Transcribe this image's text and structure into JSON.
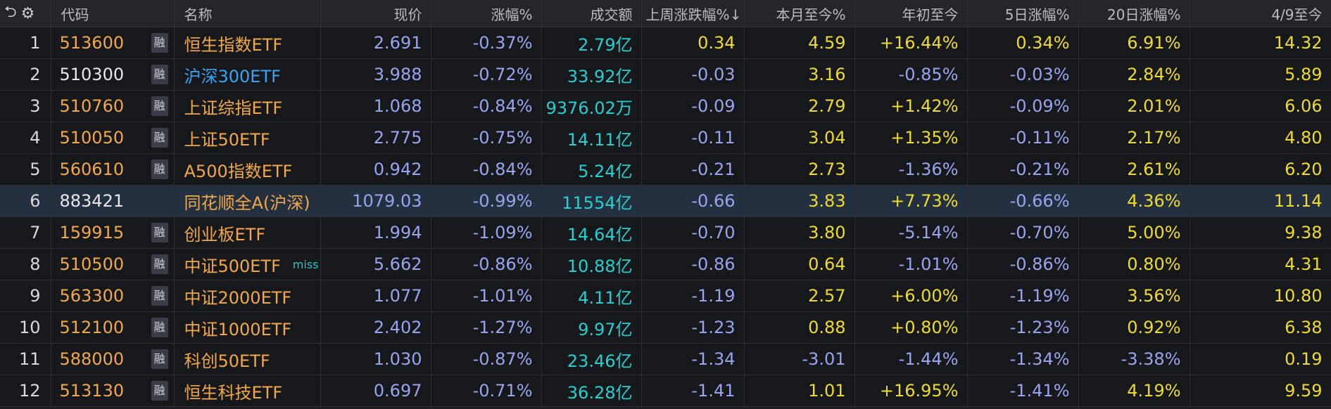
{
  "header": {
    "undo_icon": "undo-icon",
    "gear_icon": "gear-icon",
    "columns": [
      "代码",
      "名称",
      "现价",
      "涨幅%",
      "成交额",
      "上周涨跌幅%↓",
      "本月至今%",
      "年初至今",
      "5日涨幅%",
      "20日涨幅%",
      "4/9至今"
    ]
  },
  "rong_label": "融",
  "rows": [
    {
      "idx": "1",
      "code": "513600",
      "margin": true,
      "name": "恒生指数ETF",
      "price": "2.691",
      "chg": "-0.37%",
      "amount": "2.79亿",
      "lastweek": "0.34",
      "mtd": "4.59",
      "ytd": "+16.44%",
      "d5": "0.34%",
      "d20": "6.91%",
      "since": "14.32"
    },
    {
      "idx": "2",
      "code": "510300",
      "margin": true,
      "name": "沪深300ETF",
      "price": "3.988",
      "chg": "-0.72%",
      "amount": "33.92亿",
      "lastweek": "-0.03",
      "mtd": "3.16",
      "ytd": "-0.85%",
      "d5": "-0.03%",
      "d20": "2.84%",
      "since": "5.89"
    },
    {
      "idx": "3",
      "code": "510760",
      "margin": true,
      "name": "上证综指ETF",
      "price": "1.068",
      "chg": "-0.84%",
      "amount": "9376.02万",
      "lastweek": "-0.09",
      "mtd": "2.79",
      "ytd": "+1.42%",
      "d5": "-0.09%",
      "d20": "2.01%",
      "since": "6.06"
    },
    {
      "idx": "4",
      "code": "510050",
      "margin": true,
      "name": "上证50ETF",
      "price": "2.775",
      "chg": "-0.75%",
      "amount": "14.11亿",
      "lastweek": "-0.11",
      "mtd": "3.04",
      "ytd": "+1.35%",
      "d5": "-0.11%",
      "d20": "2.17%",
      "since": "4.80"
    },
    {
      "idx": "5",
      "code": "560610",
      "margin": true,
      "name": "A500指数ETF",
      "price": "0.942",
      "chg": "-0.84%",
      "amount": "5.24亿",
      "lastweek": "-0.21",
      "mtd": "2.73",
      "ytd": "-1.36%",
      "d5": "-0.21%",
      "d20": "2.61%",
      "since": "6.20"
    },
    {
      "idx": "6",
      "code": "883421",
      "margin": false,
      "name": "同花顺全A(沪深)",
      "price": "1079.03",
      "chg": "-0.99%",
      "amount": "11554亿",
      "lastweek": "-0.66",
      "mtd": "3.83",
      "ytd": "+7.73%",
      "d5": "-0.66%",
      "d20": "4.36%",
      "since": "11.14"
    },
    {
      "idx": "7",
      "code": "159915",
      "margin": true,
      "name": "创业板ETF",
      "price": "1.994",
      "chg": "-1.09%",
      "amount": "14.64亿",
      "lastweek": "-0.70",
      "mtd": "3.80",
      "ytd": "-5.14%",
      "d5": "-0.70%",
      "d20": "5.00%",
      "since": "9.38"
    },
    {
      "idx": "8",
      "code": "510500",
      "margin": true,
      "name": "中证500ETF",
      "tag": "miss",
      "price": "5.662",
      "chg": "-0.86%",
      "amount": "10.88亿",
      "lastweek": "-0.86",
      "mtd": "0.64",
      "ytd": "-1.01%",
      "d5": "-0.86%",
      "d20": "0.80%",
      "since": "4.31"
    },
    {
      "idx": "9",
      "code": "563300",
      "margin": true,
      "name": "中证2000ETF",
      "price": "1.077",
      "chg": "-1.01%",
      "amount": "4.11亿",
      "lastweek": "-1.19",
      "mtd": "2.57",
      "ytd": "+6.00%",
      "d5": "-1.19%",
      "d20": "3.56%",
      "since": "10.80"
    },
    {
      "idx": "10",
      "code": "512100",
      "margin": true,
      "name": "中证1000ETF",
      "price": "2.402",
      "chg": "-1.27%",
      "amount": "9.97亿",
      "lastweek": "-1.23",
      "mtd": "0.88",
      "ytd": "+0.80%",
      "d5": "-1.23%",
      "d20": "0.92%",
      "since": "6.38"
    },
    {
      "idx": "11",
      "code": "588000",
      "margin": true,
      "name": "科创50ETF",
      "price": "1.030",
      "chg": "-0.87%",
      "amount": "23.46亿",
      "lastweek": "-1.34",
      "mtd": "-3.01",
      "ytd": "-1.44%",
      "d5": "-1.34%",
      "d20": "-3.38%",
      "since": "0.19"
    },
    {
      "idx": "12",
      "code": "513130",
      "margin": true,
      "name": "恒生科技ETF",
      "price": "0.697",
      "chg": "-0.71%",
      "amount": "36.28亿",
      "lastweek": "-1.41",
      "mtd": "1.01",
      "ytd": "+16.95%",
      "d5": "-1.41%",
      "d20": "4.19%",
      "since": "9.59"
    }
  ],
  "colors": {
    "background": "#17181c",
    "highlight_row": "#243040",
    "positive": "#eedc2c",
    "negative": "#9aa4ee",
    "amount": "#27cfcf",
    "code": "#f0a84a",
    "name": "#f0a84a",
    "selected_name": "#3aa3f2"
  }
}
